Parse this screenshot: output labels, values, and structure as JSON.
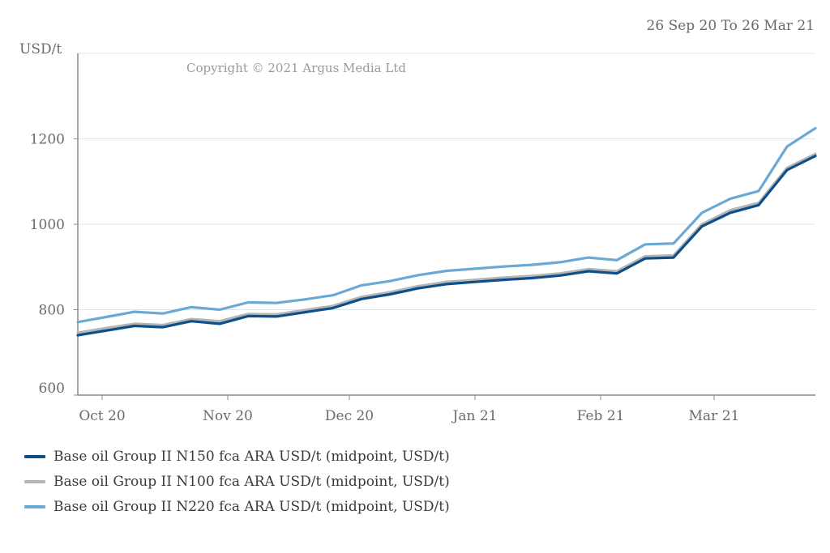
{
  "chart_data": {
    "type": "line",
    "date_range": "26 Sep 20 To 26 Mar 21",
    "copyright": "Copyright © 2021 Argus Media Ltd",
    "ylabel": "USD/t",
    "ylim": [
      600,
      1400
    ],
    "yticks": [
      600,
      800,
      1000,
      1200
    ],
    "x": [
      "2020-09-25",
      "2020-10-02",
      "2020-10-09",
      "2020-10-16",
      "2020-10-23",
      "2020-10-30",
      "2020-11-06",
      "2020-11-13",
      "2020-11-20",
      "2020-11-27",
      "2020-12-04",
      "2020-12-11",
      "2020-12-18",
      "2020-12-25",
      "2021-01-01",
      "2021-01-08",
      "2021-01-15",
      "2021-01-22",
      "2021-01-29",
      "2021-02-05",
      "2021-02-12",
      "2021-02-19",
      "2021-02-26",
      "2021-03-05",
      "2021-03-12",
      "2021-03-19",
      "2021-03-26"
    ],
    "xlim": [
      "2020-09-25",
      "2021-03-26"
    ],
    "xticks": [
      {
        "date": "2020-10-01",
        "label": "Oct 20"
      },
      {
        "date": "2020-11-01",
        "label": "Nov 20"
      },
      {
        "date": "2020-12-01",
        "label": "Dec 20"
      },
      {
        "date": "2021-01-01",
        "label": "Jan 21"
      },
      {
        "date": "2021-02-01",
        "label": "Feb 21"
      },
      {
        "date": "2021-03-01",
        "label": "Mar 21"
      }
    ],
    "grid": true,
    "legend_position": "bottom-left",
    "series": [
      {
        "name": "Base oil Group II N150 fca ARA USD/t (midpoint, USD/t)",
        "color": "#0d4f8b",
        "values": [
          740,
          751,
          762,
          759,
          773,
          767,
          785,
          784,
          794,
          804,
          825,
          836,
          850,
          860,
          865,
          870,
          874,
          880,
          890,
          885,
          920,
          922,
          995,
          1027,
          1045,
          1127,
          1160
        ]
      },
      {
        "name": "Base oil Group II N100 fca ARA USD/t (midpoint, USD/t)",
        "color": "#b5b5b5",
        "values": [
          746,
          757,
          767,
          764,
          778,
          773,
          790,
          789,
          799,
          809,
          830,
          841,
          855,
          865,
          870,
          875,
          879,
          885,
          895,
          890,
          925,
          927,
          1000,
          1033,
          1050,
          1132,
          1165
        ]
      },
      {
        "name": "Base oil Group II N220 fca ARA USD/t (midpoint, USD/t)",
        "color": "#6aa9d6",
        "values": [
          771,
          783,
          795,
          791,
          806,
          800,
          817,
          816,
          824,
          834,
          857,
          867,
          881,
          891,
          896,
          901,
          905,
          911,
          922,
          916,
          953,
          955,
          1027,
          1060,
          1078,
          1182,
          1225
        ]
      }
    ]
  }
}
